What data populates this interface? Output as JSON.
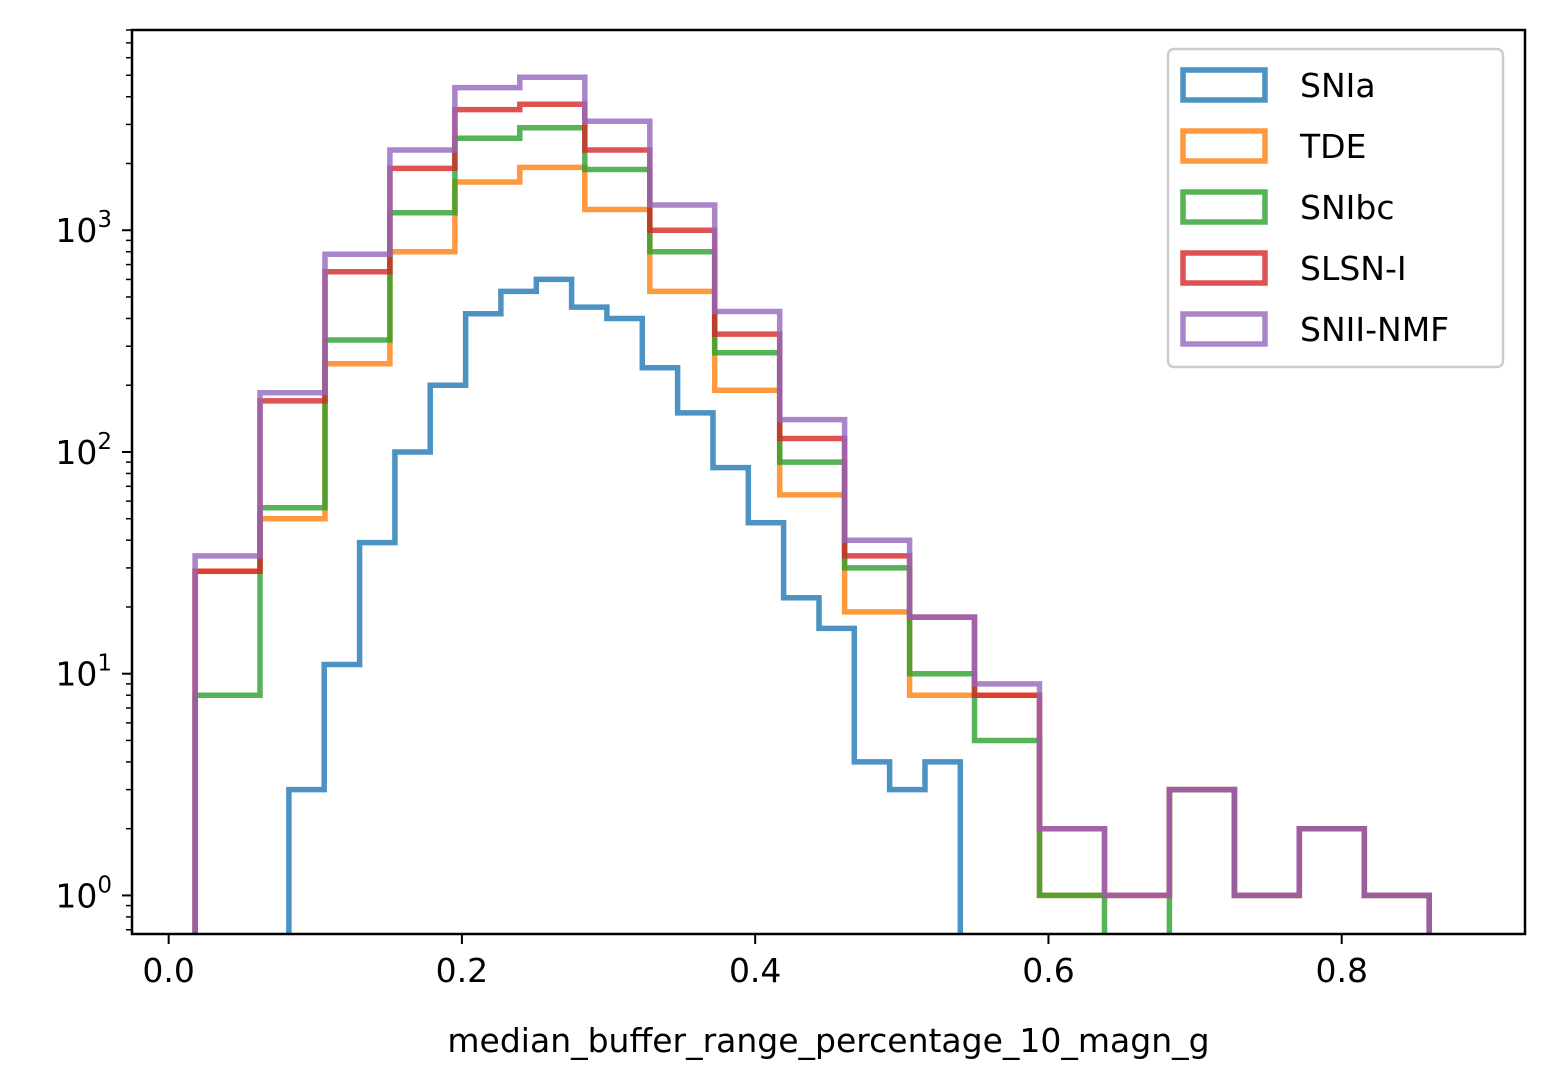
{
  "chart_data": {
    "type": "histogram",
    "title": "",
    "xlabel": "median_buffer_range_percentage_10_magn_g",
    "ylabel": "",
    "yscale": "log",
    "xlim": [
      -0.025,
      0.925
    ],
    "ylim": [
      0.67,
      8000
    ],
    "x_ticks": [
      {
        "value": 0.0,
        "label": "0.0"
      },
      {
        "value": 0.2,
        "label": "0.2"
      },
      {
        "value": 0.4,
        "label": "0.4"
      },
      {
        "value": 0.6,
        "label": "0.6"
      },
      {
        "value": 0.8,
        "label": "0.8"
      }
    ],
    "y_ticks": [
      {
        "value": 1,
        "base": "10",
        "exp": "0"
      },
      {
        "value": 10,
        "base": "10",
        "exp": "1"
      },
      {
        "value": 100,
        "base": "10",
        "exp": "2"
      },
      {
        "value": 1000,
        "base": "10",
        "exp": "3"
      }
    ],
    "grid": false,
    "legend_position": "top-right",
    "series": [
      {
        "name": "SNIa",
        "color": "#1f77b4",
        "edges": [
          0.082,
          0.1061,
          0.1302,
          0.1543,
          0.1784,
          0.2025,
          0.2266,
          0.2507,
          0.2748,
          0.2989,
          0.323,
          0.3471,
          0.3712,
          0.3953,
          0.4194,
          0.4435,
          0.4676,
          0.4917,
          0.5158,
          0.5399,
          0.564
        ],
        "counts": [
          3,
          11,
          39,
          100,
          200,
          420,
          530,
          600,
          450,
          400,
          240,
          150,
          85,
          48,
          22,
          16,
          4,
          3,
          4,
          0
        ]
      },
      {
        "name": "TDE",
        "color": "#ff7f0e",
        "edges": [
          0.018,
          0.0623,
          0.1066,
          0.1509,
          0.1952,
          0.2395,
          0.2838,
          0.3281,
          0.3724,
          0.4167,
          0.461,
          0.5053,
          0.5496,
          0.5939,
          0.6382,
          0.6825,
          0.7268,
          0.7711,
          0.8154,
          0.8597,
          0.904
        ],
        "counts": [
          29,
          50,
          250,
          800,
          1650,
          1920,
          1240,
          530,
          190,
          64,
          19,
          8,
          8,
          1,
          1,
          3,
          1,
          2,
          1,
          0
        ]
      },
      {
        "name": "SNIbc",
        "color": "#2ca02c",
        "edges": [
          0.018,
          0.0623,
          0.1066,
          0.1509,
          0.1952,
          0.2395,
          0.2838,
          0.3281,
          0.3724,
          0.4167,
          0.461,
          0.5053,
          0.5496,
          0.5939,
          0.6382,
          0.6825,
          0.7268,
          0.7711,
          0.8154,
          0.8597,
          0.904
        ],
        "counts": [
          8,
          56,
          320,
          1200,
          2600,
          2900,
          1880,
          800,
          280,
          90,
          30,
          10,
          5,
          1,
          0,
          3,
          1,
          2,
          1,
          0
        ]
      },
      {
        "name": "SLSN-I",
        "color": "#d62728",
        "edges": [
          0.018,
          0.0623,
          0.1066,
          0.1509,
          0.1952,
          0.2395,
          0.2838,
          0.3281,
          0.3724,
          0.4167,
          0.461,
          0.5053,
          0.5496,
          0.5939,
          0.6382,
          0.6825,
          0.7268,
          0.7711,
          0.8154,
          0.8597,
          0.904
        ],
        "counts": [
          29,
          170,
          650,
          1900,
          3500,
          3700,
          2300,
          1000,
          340,
          115,
          34,
          18,
          8,
          2,
          1,
          3,
          1,
          2,
          1,
          0
        ]
      },
      {
        "name": "SNII-NMF",
        "color": "#9467bd",
        "edges": [
          0.018,
          0.0623,
          0.1066,
          0.1509,
          0.1952,
          0.2395,
          0.2838,
          0.3281,
          0.3724,
          0.4167,
          0.461,
          0.5053,
          0.5496,
          0.5939,
          0.6382,
          0.6825,
          0.7268,
          0.7711,
          0.8154,
          0.8597,
          0.904
        ],
        "counts": [
          34,
          185,
          780,
          2300,
          4400,
          4900,
          3100,
          1300,
          430,
          140,
          40,
          18,
          9,
          2,
          1,
          3,
          1,
          2,
          1,
          0
        ]
      }
    ]
  }
}
